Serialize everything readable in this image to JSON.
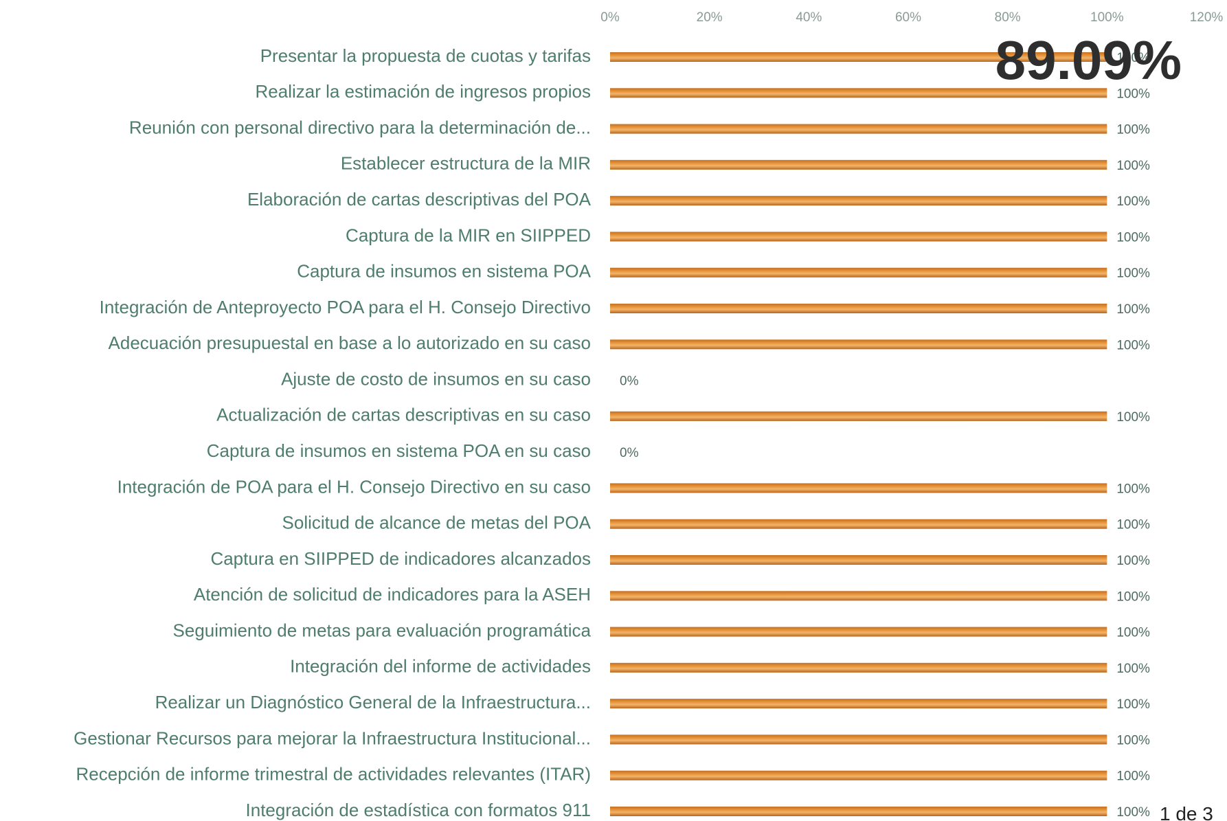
{
  "chart_data": {
    "type": "bar",
    "orientation": "horizontal",
    "categories": [
      "Presentar la propuesta de cuotas y tarifas",
      "Realizar la estimación de ingresos propios",
      "Reunión con personal directivo para la determinación de...",
      "Establecer estructura de la MIR",
      "Elaboración de cartas descriptivas del POA",
      "Captura de la MIR en SIIPPED",
      "Captura de insumos en sistema POA",
      "Integración de Anteproyecto POA para el H. Consejo Directivo",
      "Adecuación presupuestal en base a lo autorizado en su caso",
      "Ajuste de costo de insumos en su caso",
      "Actualización de cartas descriptivas en su caso",
      "Captura de insumos en sistema POA en su caso",
      "Integración de POA para el H. Consejo Directivo en su caso",
      "Solicitud de alcance de metas del POA",
      "Captura en SIIPPED de indicadores alcanzados",
      "Atención de solicitud de indicadores para la ASEH",
      "Seguimiento de metas para evaluación programática",
      "Integración del informe de actividades",
      "Realizar un Diagnóstico General de la Infraestructura...",
      "Gestionar Recursos para mejorar la Infraestructura Institucional...",
      "Recepción de informe trimestral de actividades relevantes (ITAR)",
      "Integración de estadística con formatos 911"
    ],
    "values": [
      100,
      100,
      100,
      100,
      100,
      100,
      100,
      100,
      100,
      0,
      100,
      0,
      100,
      100,
      100,
      100,
      100,
      100,
      100,
      100,
      100,
      100
    ],
    "value_labels": [
      "100%",
      "100%",
      "100%",
      "100%",
      "100%",
      "100%",
      "100%",
      "100%",
      "100%",
      "0%",
      "100%",
      "0%",
      "100%",
      "100%",
      "100%",
      "100%",
      "100%",
      "100%",
      "100%",
      "100%",
      "100%",
      "100%"
    ],
    "color": "#e8963c",
    "xlim": [
      0,
      120
    ],
    "xticks": [
      {
        "value": 0,
        "label": "0%"
      },
      {
        "value": 20,
        "label": "20%"
      },
      {
        "value": 40,
        "label": "40%"
      },
      {
        "value": 60,
        "label": "60%"
      },
      {
        "value": 80,
        "label": "80%"
      },
      {
        "value": 100,
        "label": "100%"
      },
      {
        "value": 120,
        "label": "120%"
      }
    ],
    "grid": false,
    "annotations": [
      "89.09%",
      "1 de 3"
    ]
  }
}
